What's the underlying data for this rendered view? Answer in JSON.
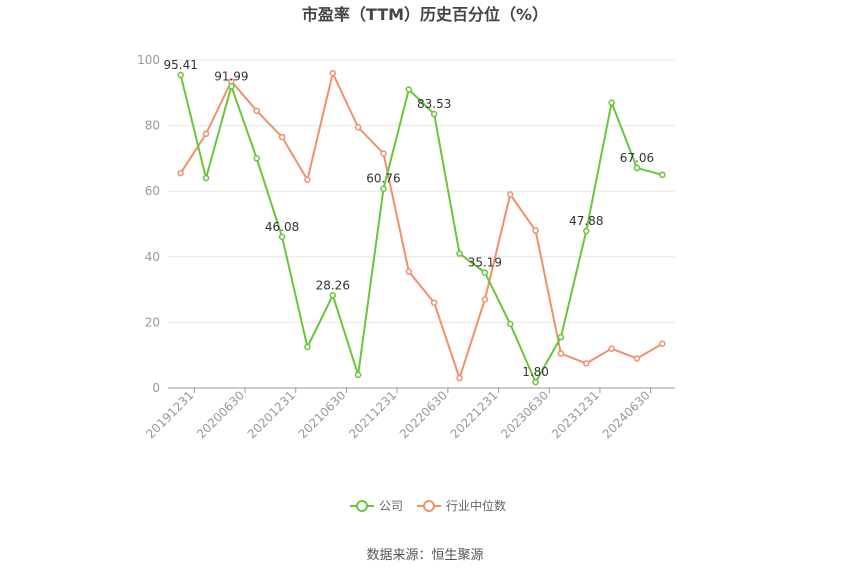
{
  "title": "市盈率（TTM）历史百分位（%）",
  "source": "数据来源：恒生聚源",
  "colors": {
    "company": "#6ac53b",
    "industry": "#f0916b",
    "grid": "#e6e6e6",
    "axis": "#999999"
  },
  "chart_data": {
    "type": "line",
    "title": "市盈率（TTM）历史百分位（%）",
    "ylim": [
      0,
      100
    ],
    "y_ticks": [
      0,
      20,
      40,
      60,
      80,
      100
    ],
    "grid": true,
    "legend_position": "bottom",
    "x_tick_labels": [
      "20191231",
      "20200630",
      "20201231",
      "20210630",
      "20211231",
      "20220630",
      "20221231",
      "20230630",
      "20231231",
      "20240630"
    ],
    "series": [
      {
        "name": "公司",
        "color": "#6ac53b",
        "values": [
          95.41,
          64,
          91.99,
          70,
          46.08,
          12.5,
          28.26,
          4,
          60.76,
          91,
          83.53,
          41,
          35.19,
          19.5,
          1.8,
          15.5,
          47.88,
          87,
          67.06,
          65
        ],
        "labels": [
          "95.41",
          "",
          "91.99",
          "",
          "46.08",
          "",
          "28.26",
          "",
          "60.76",
          "",
          "83.53",
          "",
          "35.19",
          "",
          "1.80",
          "",
          "47.88",
          "",
          "67.06",
          ""
        ]
      },
      {
        "name": "行业中位数",
        "color": "#f0916b",
        "values": [
          65.5,
          77.5,
          93.5,
          84.5,
          76.5,
          63.5,
          96,
          79.5,
          71.5,
          35.5,
          26,
          3,
          27,
          59,
          48,
          10.5,
          7.5,
          12,
          9,
          13.5
        ]
      }
    ]
  }
}
